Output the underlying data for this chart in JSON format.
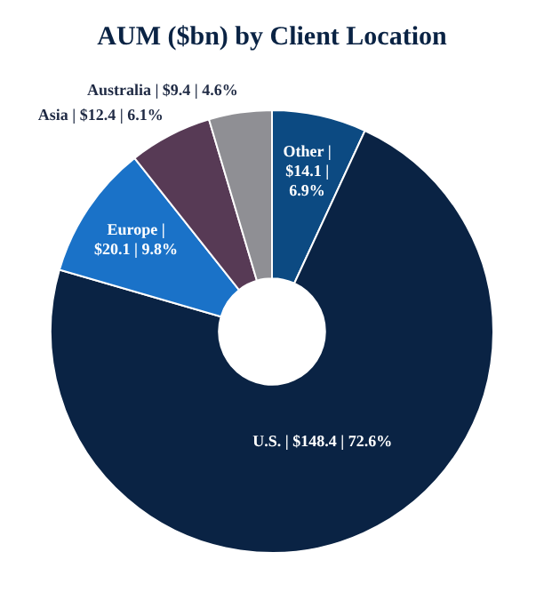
{
  "chart_data": {
    "type": "donut",
    "title": "AUM ($bn) by Client Location",
    "categories": [
      "Other |",
      "U.S. |",
      "Europe |",
      "Asia |",
      "Australia |"
    ],
    "values": [
      14.1,
      148.4,
      20.1,
      12.4,
      9.4
    ],
    "colors": [
      "#0c4a82",
      "#0a2344",
      "#1a72c8",
      "#573a55",
      "#8f8f94"
    ],
    "value_labels": [
      "$14.1 | 6.9%",
      "$148.4 | 72.6%",
      "$20.1 | 9.8%",
      "$12.4 | 6.1%",
      "$9.4 | 4.6%"
    ],
    "legend": false
  }
}
